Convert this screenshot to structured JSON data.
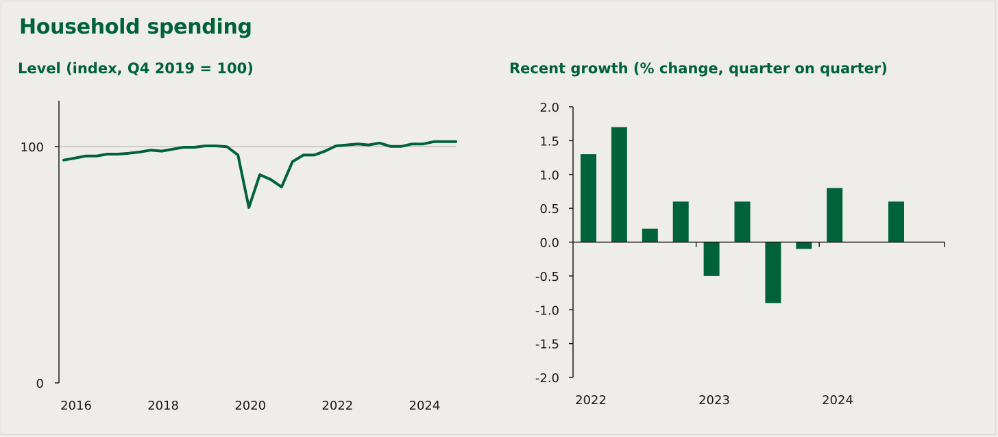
{
  "page": {
    "title": "Household spending"
  },
  "chart_data": [
    {
      "type": "line",
      "subtitle": "Level (index, Q4 2019 = 100)",
      "xlabel": "",
      "ylabel": "",
      "ylim": [
        0,
        120
      ],
      "y_ticks": [
        {
          "value": 0,
          "label": "0"
        },
        {
          "value": 100,
          "label": "100"
        }
      ],
      "x_tick_labels": [
        "2016",
        "2018",
        "2020",
        "2022",
        "2024"
      ],
      "reference_line": 100,
      "grid": false,
      "color": "#00623b",
      "reference_color": "#cfccc7",
      "series": [
        {
          "x": [
            "2016 Q1",
            "2016 Q2",
            "2016 Q3",
            "2016 Q4",
            "2017 Q1",
            "2017 Q2",
            "2017 Q3",
            "2017 Q4",
            "2018 Q1",
            "2018 Q2",
            "2018 Q3",
            "2018 Q4",
            "2019 Q1",
            "2019 Q2",
            "2019 Q3",
            "2019 Q4",
            "2020 Q1",
            "2020 Q2",
            "2020 Q3",
            "2020 Q4",
            "2021 Q1",
            "2021 Q2",
            "2021 Q3",
            "2021 Q4",
            "2022 Q1",
            "2022 Q2",
            "2022 Q3",
            "2022 Q4",
            "2023 Q1",
            "2023 Q2",
            "2023 Q3",
            "2023 Q4",
            "2024 Q1",
            "2024 Q2",
            "2024 Q3",
            "2024 Q4",
            "2025 Q1"
          ],
          "values": [
            94.3,
            95.1,
            96,
            96,
            96.8,
            96.8,
            97.2,
            97.7,
            98.5,
            98.1,
            98.9,
            99.7,
            99.7,
            100.3,
            100.3,
            99.9,
            96.4,
            74.2,
            88.1,
            86.1,
            82.9,
            93.6,
            96.4,
            96.4,
            98.1,
            100.3,
            100.7,
            101.1,
            100.7,
            101.5,
            100.1,
            100.1,
            101.1,
            101.1,
            102.1,
            102.1,
            102.1
          ]
        }
      ]
    },
    {
      "type": "bar",
      "subtitle": "Recent growth (% change, quarter on quarter)",
      "xlabel": "",
      "ylabel": "",
      "ylim": [
        -2.0,
        2.0
      ],
      "y_tick_labels": [
        "2.0",
        "1.5",
        "1.0",
        "0.5",
        "0.0",
        "-0.5",
        "-1.0",
        "-1.5",
        "-2.0"
      ],
      "y_tick_values": [
        2.0,
        1.5,
        1.0,
        0.5,
        0.0,
        -0.5,
        -1.0,
        -1.5,
        -2.0
      ],
      "categories": [
        "2022 Q1",
        "2022 Q2",
        "2022 Q3",
        "2022 Q4",
        "2023 Q1",
        "2023 Q2",
        "2023 Q3",
        "2023 Q4",
        "2024 Q1",
        "2024 Q2",
        "2024 Q3"
      ],
      "x_tick_labels": [
        "2022",
        "2023",
        "2024"
      ],
      "grid": false,
      "color": "#00623b",
      "series": [
        {
          "values": [
            1.3,
            1.7,
            0.2,
            0.6,
            -0.5,
            0.6,
            -0.9,
            -0.1,
            0.8,
            0.0,
            0.6
          ]
        }
      ]
    }
  ]
}
